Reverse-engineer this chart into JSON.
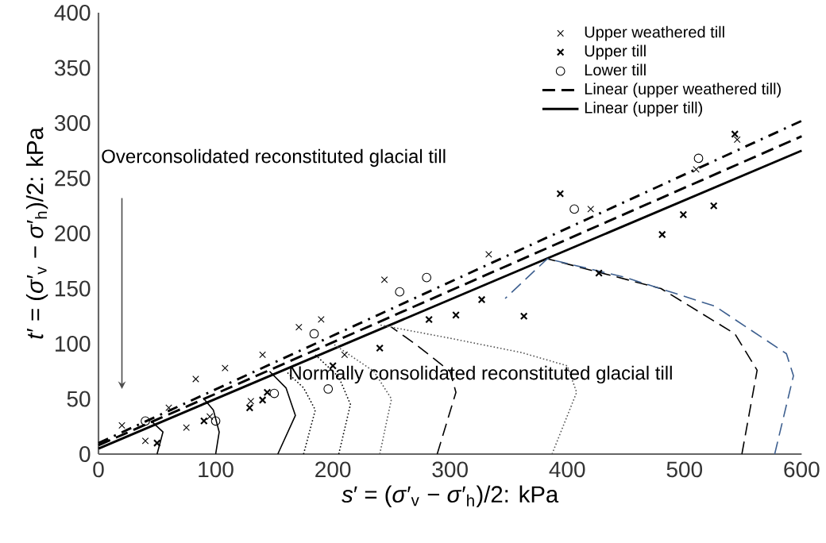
{
  "chart_data": {
    "type": "scatter",
    "xlabel": "*s*′ = (*σ*′$_{v}$ − *σ*′$_{h}$)/2: kPa",
    "ylabel": "*t*′ = (*σ*′$_{v}$ − *σ*′$_{h}$)/2: kPa",
    "xlim": [
      0,
      600
    ],
    "ylim": [
      0,
      400
    ],
    "xticks": [
      0,
      100,
      200,
      300,
      400,
      500,
      600
    ],
    "yticks": [
      0,
      50,
      100,
      150,
      200,
      250,
      300,
      350,
      400
    ],
    "grid": false,
    "legend": "top right",
    "annotations": [
      "Overconsolidated reconstituted glacial till",
      "Normally consolidated reconstituted glacial till"
    ],
    "series": [
      {
        "name": "Upper weathered till",
        "marker": "cross",
        "color": "#000000",
        "x": [
          20,
          40,
          60,
          75,
          83,
          95,
          108,
          130,
          140,
          171,
          190,
          210,
          244,
          333,
          420,
          510,
          545
        ],
        "values": [
          26,
          12,
          42,
          24,
          68,
          34,
          78,
          48,
          90,
          115,
          122,
          90,
          158,
          181,
          222,
          258,
          285
        ]
      },
      {
        "name": "Upper till",
        "marker": "cross",
        "color": "#000000",
        "x": [
          50,
          90,
          129,
          140,
          144,
          200,
          240,
          282,
          305,
          327,
          363,
          394,
          427,
          481,
          499,
          525,
          543
        ],
        "values": [
          10,
          30,
          42,
          49,
          56,
          80,
          96,
          122,
          126,
          140,
          125,
          236,
          164,
          199,
          217,
          225,
          290
        ]
      },
      {
        "name": "Lower till",
        "marker": "circle",
        "color": "#000000",
        "x": [
          40,
          100,
          150,
          184,
          196,
          257,
          280,
          406,
          512
        ],
        "values": [
          30,
          30,
          55,
          109,
          59,
          147,
          160,
          222,
          268
        ]
      },
      {
        "name": "Linear (upper weathered till)",
        "type": "line",
        "line_style": "dashed",
        "color": "#000000",
        "x": [
          0,
          600
        ],
        "values": [
          8,
          288
        ]
      },
      {
        "name": "Linear (upper till)",
        "type": "line",
        "line_style": "solid",
        "color": "#000000",
        "x": [
          0,
          600
        ],
        "values": [
          5,
          275
        ]
      },
      {
        "type": "line",
        "line_style": "dashdot",
        "color": "#000000",
        "x": [
          0,
          600
        ],
        "values": [
          10,
          302
        ]
      },
      {
        "type": "line",
        "line_style": "solid",
        "color": "#000000",
        "x": [
          50,
          55,
          45
        ],
        "values": [
          0,
          20,
          30
        ]
      },
      {
        "type": "line",
        "line_style": "solid",
        "color": "#000000",
        "x": [
          100,
          103,
          98,
          90
        ],
        "values": [
          0,
          20,
          40,
          50
        ]
      },
      {
        "type": "line",
        "line_style": "solid",
        "color": "#000000",
        "x": [
          153,
          168,
          160,
          146
        ],
        "values": [
          0,
          35,
          60,
          75
        ]
      },
      {
        "type": "line",
        "line_style": "dotted",
        "color": "#000000",
        "x": [
          175,
          185,
          175,
          160
        ],
        "values": [
          0,
          40,
          60,
          75
        ]
      },
      {
        "type": "line",
        "line_style": "dotted",
        "color": "#000000",
        "x": [
          205,
          215,
          205,
          185
        ],
        "values": [
          0,
          45,
          70,
          90
        ]
      },
      {
        "type": "line",
        "line_style": "dotted",
        "color": "#555555",
        "x": [
          240,
          250,
          235,
          200
        ],
        "values": [
          0,
          50,
          75,
          100
        ]
      },
      {
        "type": "line",
        "line_style": "dashed",
        "color": "#000000",
        "x": [
          289,
          305,
          300,
          270,
          250
        ],
        "values": [
          0,
          56,
          75,
          100,
          115
        ]
      },
      {
        "type": "line",
        "line_style": "dotted",
        "color": "#555555",
        "x": [
          387,
          408,
          400,
          361,
          300,
          240
        ],
        "values": [
          0,
          56,
          80,
          92,
          105,
          117
        ]
      },
      {
        "type": "line",
        "line_style": "dashed",
        "color": "#000000",
        "x": [
          549,
          562,
          543,
          480,
          383
        ],
        "values": [
          0,
          76,
          109,
          150,
          177
        ]
      },
      {
        "type": "line",
        "line_style": "dashed",
        "color": "#3d5f8f",
        "x": [
          577,
          593,
          587,
          526,
          450,
          383,
          347
        ],
        "values": [
          0,
          71,
          91,
          134,
          160,
          177,
          141
        ]
      }
    ]
  }
}
